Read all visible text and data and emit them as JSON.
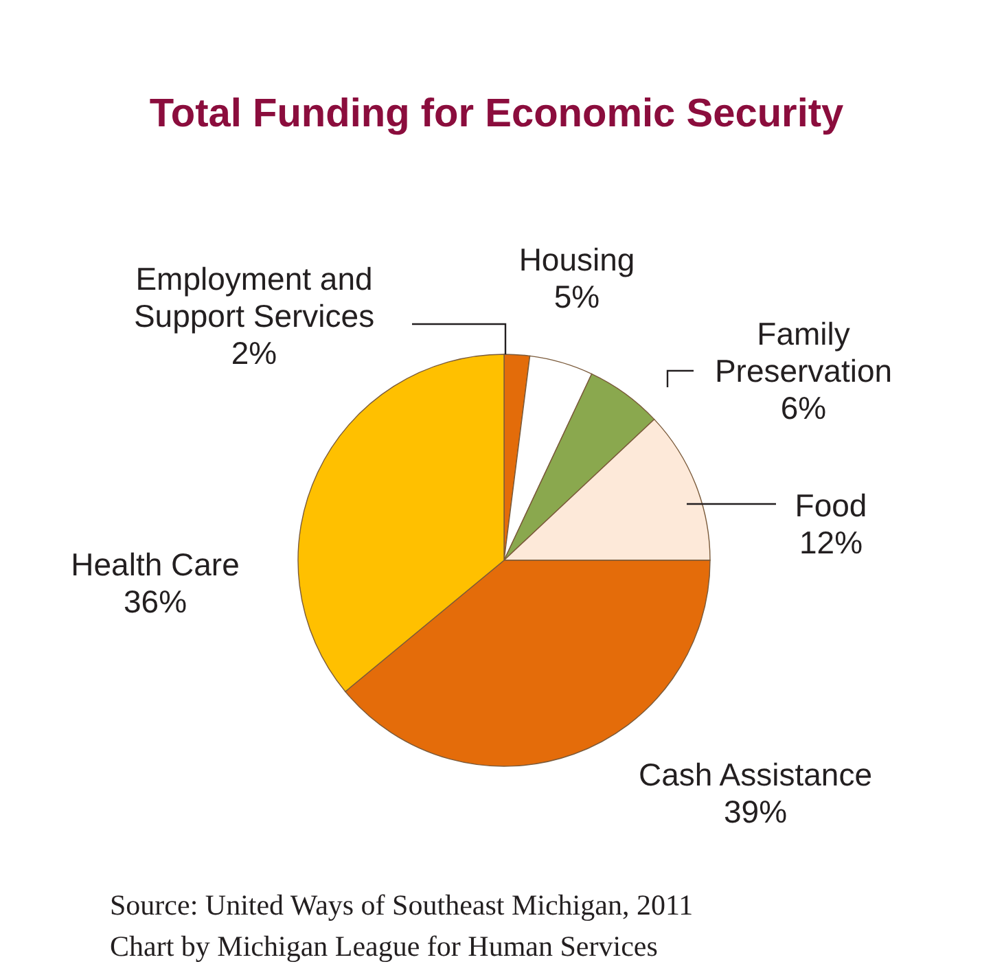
{
  "chart_data": {
    "type": "pie",
    "title": "Total Funding for Economic Security",
    "categories": [
      "Employment and Support Services",
      "Housing",
      "Family Preservation",
      "Food",
      "Cash Assistance",
      "Health Care"
    ],
    "values": [
      2,
      5,
      6,
      12,
      39,
      36
    ],
    "value_labels": [
      "2%",
      "5%",
      "6%",
      "12%",
      "39%",
      "36%"
    ],
    "colors": [
      "#e36c0a",
      "#ffffff",
      "#8aa84e",
      "#fde9d9",
      "#e46c0a",
      "#ffc000"
    ],
    "legend": false,
    "annotations": [
      "Source: United Ways of Southeast Michigan, 2011",
      "Chart by Michigan League for Human Services"
    ]
  }
}
